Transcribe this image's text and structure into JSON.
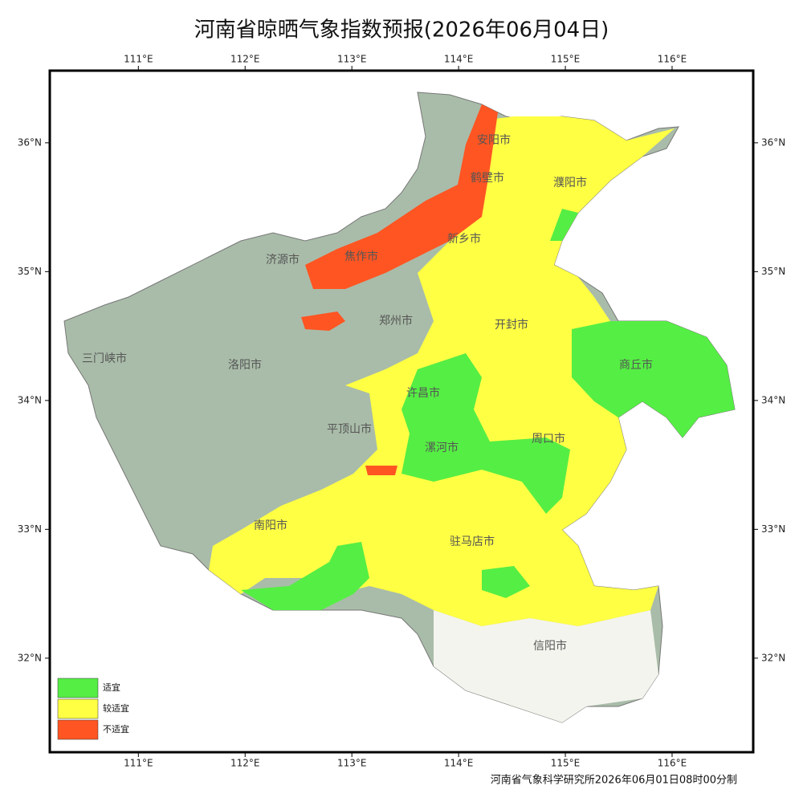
{
  "title": "河南省晾晒气象指数预报(2026年06月04日)",
  "xlim": [
    110.17,
    116.76
  ],
  "ylim": [
    31.27,
    36.56
  ],
  "lon_ticks": [
    {
      "value": 111,
      "label": "111°E"
    },
    {
      "value": 112,
      "label": "112°E"
    },
    {
      "value": 113,
      "label": "113°E"
    },
    {
      "value": 114,
      "label": "114°E"
    },
    {
      "value": 115,
      "label": "115°E"
    },
    {
      "value": 116,
      "label": "116°E"
    }
  ],
  "lat_ticks": [
    {
      "value": 36,
      "label": "36°N"
    },
    {
      "value": 35,
      "label": "35°N"
    },
    {
      "value": 34,
      "label": "34°N"
    },
    {
      "value": 33,
      "label": "33°N"
    },
    {
      "value": 32,
      "label": "32°N"
    }
  ],
  "cities": [
    "安阳市",
    "鹤壁市",
    "濮阳市",
    "新乡市",
    "济源市",
    "焦作市",
    "郑州市",
    "开封市",
    "三门峡市",
    "洛阳市",
    "商丘市",
    "许昌市",
    "平顶山市",
    "漯河市",
    "周口市",
    "南阳市",
    "驻马店市",
    "信阳市"
  ],
  "legend": [
    {
      "label": "适宜",
      "color": "#55ee44"
    },
    {
      "label": "较适宜",
      "color": "#ffff44"
    },
    {
      "label": "不适宜",
      "color": "#ff5522"
    }
  ],
  "footer": "河南省气象科学研究所2026年06月01日08时00分制"
}
